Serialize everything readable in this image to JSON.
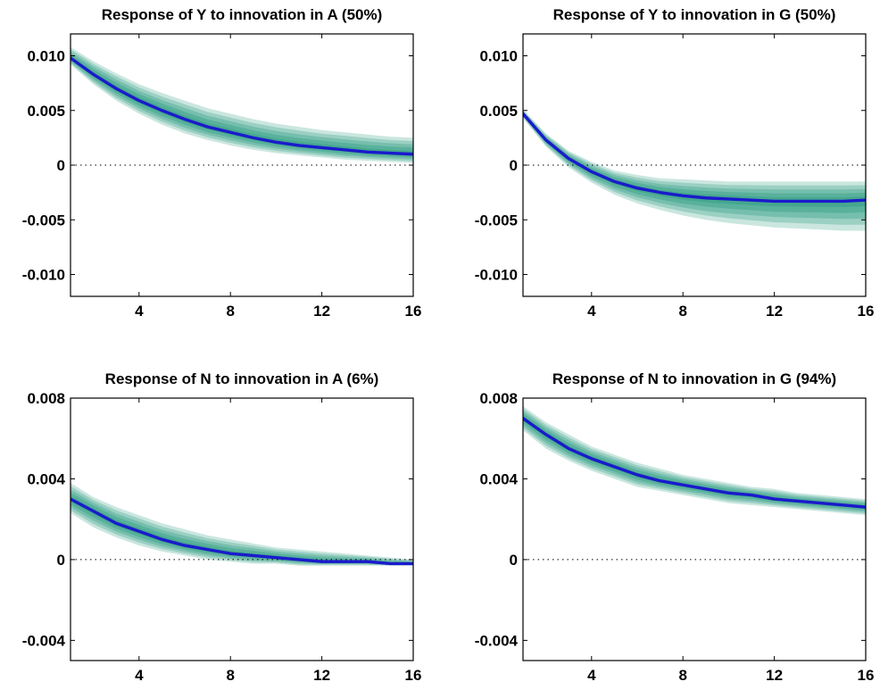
{
  "colors": {
    "band": "#2a9a7e",
    "median": "#1a1acc",
    "axis": "#000000"
  },
  "chart_data": [
    {
      "type": "area",
      "title": "Response of Y to innovation in A (50%)",
      "xlim": [
        1,
        16
      ],
      "ylim": [
        -0.012,
        0.012
      ],
      "xticks": [
        4,
        8,
        12,
        16
      ],
      "xtick_labels": [
        "4",
        "8",
        "12",
        "16"
      ],
      "yticks": [
        0.01,
        0.005,
        0,
        -0.005,
        -0.01
      ],
      "ytick_labels": [
        "0.010",
        "0.005",
        "0",
        "-0.005",
        "-0.010"
      ],
      "zero_line": true,
      "x": [
        1,
        2,
        3,
        4,
        5,
        6,
        7,
        8,
        9,
        10,
        11,
        12,
        13,
        14,
        15,
        16
      ],
      "median": [
        0.0098,
        0.0083,
        0.007,
        0.0059,
        0.005,
        0.0042,
        0.0035,
        0.003,
        0.0025,
        0.0021,
        0.0018,
        0.0016,
        0.0014,
        0.0012,
        0.0011,
        0.001
      ],
      "lower": [
        0.0092,
        0.0074,
        0.0059,
        0.0047,
        0.0037,
        0.0029,
        0.0023,
        0.0018,
        0.0014,
        0.0011,
        0.0009,
        0.0007,
        0.0005,
        0.0004,
        0.0003,
        0.0002
      ],
      "upper": [
        0.0108,
        0.0095,
        0.0084,
        0.0074,
        0.0066,
        0.0059,
        0.0052,
        0.0047,
        0.0042,
        0.0038,
        0.0035,
        0.0032,
        0.003,
        0.0028,
        0.0026,
        0.0025
      ]
    },
    {
      "type": "area",
      "title": "Response of Y to innovation in G (50%)",
      "xlim": [
        1,
        16
      ],
      "ylim": [
        -0.012,
        0.012
      ],
      "xticks": [
        4,
        8,
        12,
        16
      ],
      "xtick_labels": [
        "4",
        "8",
        "12",
        "16"
      ],
      "yticks": [
        0.01,
        0.005,
        0,
        -0.005,
        -0.01
      ],
      "ytick_labels": [
        "0.010",
        "0.005",
        "0",
        "-0.005",
        "-0.010"
      ],
      "zero_line": true,
      "x": [
        1,
        2,
        3,
        4,
        5,
        6,
        7,
        8,
        9,
        10,
        11,
        12,
        13,
        14,
        15,
        16
      ],
      "median": [
        0.0047,
        0.0023,
        0.0006,
        -0.0006,
        -0.0015,
        -0.0021,
        -0.0025,
        -0.0028,
        -0.003,
        -0.0031,
        -0.0032,
        -0.0033,
        -0.0033,
        -0.0033,
        -0.0033,
        -0.0032
      ],
      "lower": [
        0.0043,
        0.0017,
        -0.0002,
        -0.0016,
        -0.0027,
        -0.0035,
        -0.0041,
        -0.0046,
        -0.005,
        -0.0053,
        -0.0055,
        -0.0057,
        -0.0058,
        -0.0059,
        -0.006,
        -0.006
      ],
      "upper": [
        0.0051,
        0.0029,
        0.0013,
        0.0003,
        -0.0005,
        -0.0009,
        -0.0012,
        -0.0013,
        -0.0014,
        -0.0015,
        -0.0015,
        -0.0015,
        -0.0015,
        -0.0015,
        -0.0015,
        -0.0015
      ]
    },
    {
      "type": "area",
      "title": "Response of N to innovation in A (6%)",
      "xlim": [
        1,
        16
      ],
      "ylim": [
        -0.005,
        0.008
      ],
      "xticks": [
        4,
        8,
        12,
        16
      ],
      "xtick_labels": [
        "4",
        "8",
        "12",
        "16"
      ],
      "yticks": [
        0.008,
        0.004,
        0,
        -0.004
      ],
      "ytick_labels": [
        "0.008",
        "0.004",
        "0",
        "-0.004"
      ],
      "zero_line": true,
      "x": [
        1,
        2,
        3,
        4,
        5,
        6,
        7,
        8,
        9,
        10,
        11,
        12,
        13,
        14,
        15,
        16
      ],
      "median": [
        0.003,
        0.0024,
        0.0018,
        0.0014,
        0.001,
        0.0007,
        0.0005,
        0.0003,
        0.0002,
        0.0001,
        0.0,
        -0.0001,
        -0.0001,
        -0.0001,
        -0.0002,
        -0.0002
      ],
      "lower": [
        0.0023,
        0.0016,
        0.0011,
        0.0007,
        0.0004,
        0.0002,
        0.0,
        -0.0001,
        -0.0002,
        -0.0002,
        -0.0003,
        -0.0003,
        -0.0003,
        -0.0003,
        -0.0003,
        -0.0003
      ],
      "upper": [
        0.0038,
        0.0031,
        0.0026,
        0.0022,
        0.0018,
        0.0015,
        0.0012,
        0.001,
        0.0008,
        0.0006,
        0.0005,
        0.0004,
        0.0003,
        0.0002,
        0.0001,
        0.0
      ]
    },
    {
      "type": "area",
      "title": "Response of N to innovation in G (94%)",
      "xlim": [
        1,
        16
      ],
      "ylim": [
        -0.005,
        0.008
      ],
      "xticks": [
        4,
        8,
        12,
        16
      ],
      "xtick_labels": [
        "4",
        "8",
        "12",
        "16"
      ],
      "yticks": [
        0.008,
        0.004,
        0,
        -0.004
      ],
      "ytick_labels": [
        "0.008",
        "0.004",
        "0",
        "-0.004"
      ],
      "zero_line": true,
      "x": [
        1,
        2,
        3,
        4,
        5,
        6,
        7,
        8,
        9,
        10,
        11,
        12,
        13,
        14,
        15,
        16
      ],
      "median": [
        0.007,
        0.0062,
        0.0055,
        0.005,
        0.0046,
        0.0042,
        0.0039,
        0.0037,
        0.0035,
        0.0033,
        0.0032,
        0.003,
        0.0029,
        0.0028,
        0.0027,
        0.0026
      ],
      "lower": [
        0.0064,
        0.0055,
        0.0049,
        0.0044,
        0.004,
        0.0036,
        0.0034,
        0.0032,
        0.003,
        0.0028,
        0.0027,
        0.0026,
        0.0025,
        0.0024,
        0.0023,
        0.0022
      ],
      "upper": [
        0.0076,
        0.0068,
        0.0062,
        0.0056,
        0.0052,
        0.0048,
        0.0045,
        0.0042,
        0.004,
        0.0038,
        0.0036,
        0.0035,
        0.0033,
        0.0032,
        0.0031,
        0.003
      ]
    }
  ]
}
